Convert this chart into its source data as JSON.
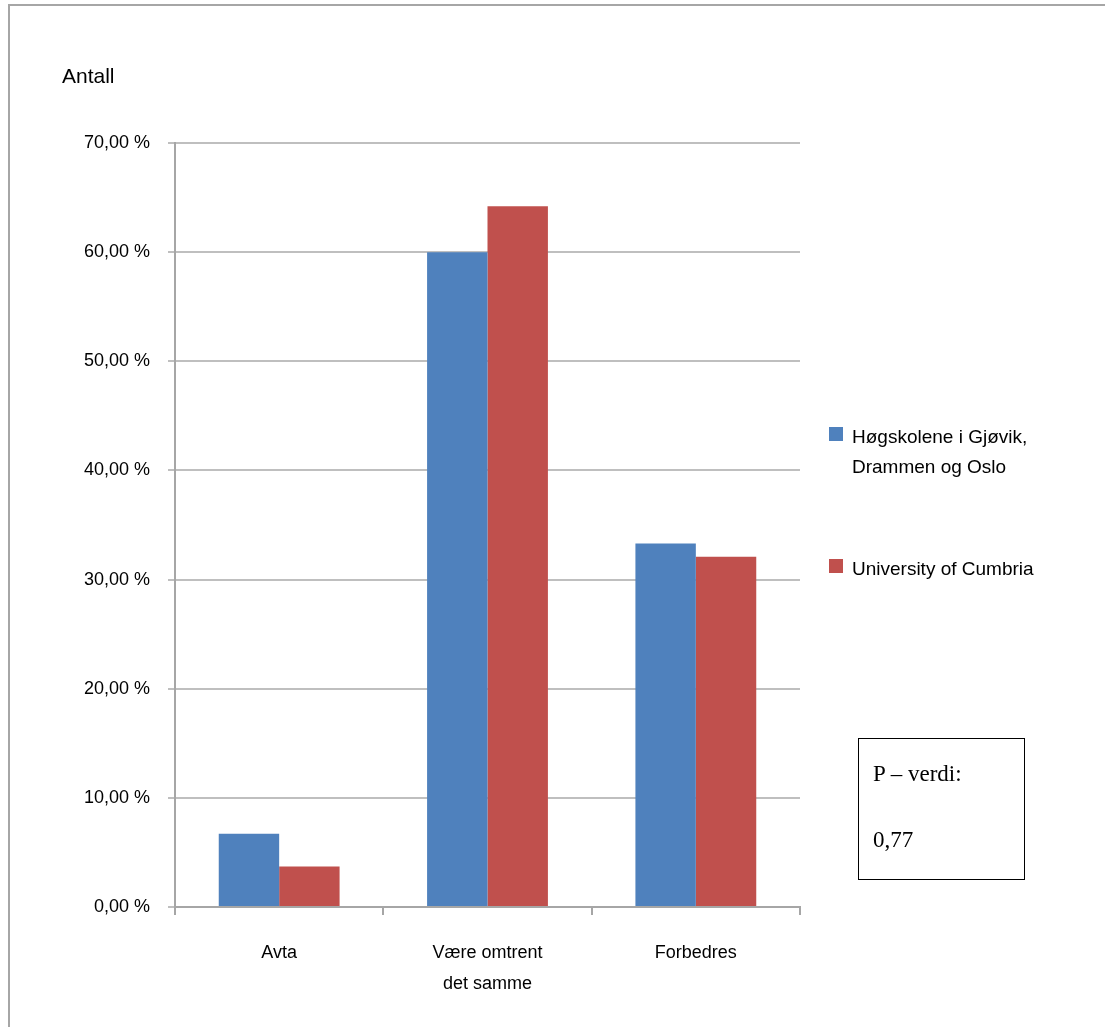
{
  "chart_data": {
    "type": "bar",
    "ylabel": "Antall",
    "categories": [
      "Avta",
      "Være omtrent det samme",
      "Forbedres"
    ],
    "series": [
      {
        "name": "Høgskolene i Gjøvik, Drammen og Oslo",
        "color": "#4f81bd",
        "values": [
          6.7,
          60.0,
          33.3
        ]
      },
      {
        "name": "University of Cumbria",
        "color": "#c0504d",
        "values": [
          3.7,
          64.2,
          32.1
        ]
      }
    ],
    "ylim": [
      0,
      70
    ],
    "yticks": [
      {
        "value": 0,
        "label": "0,00 %"
      },
      {
        "value": 10,
        "label": "10,00 %"
      },
      {
        "value": 20,
        "label": "20,00 %"
      },
      {
        "value": 30,
        "label": "30,00 %"
      },
      {
        "value": 40,
        "label": "40,00 %"
      },
      {
        "value": 50,
        "label": "50,00 %"
      },
      {
        "value": 60,
        "label": "60,00 %"
      },
      {
        "value": 70,
        "label": "70,00 %"
      }
    ],
    "grid": "y",
    "legend": "right",
    "annotations": [
      "P – verdi: 0,77"
    ]
  }
}
